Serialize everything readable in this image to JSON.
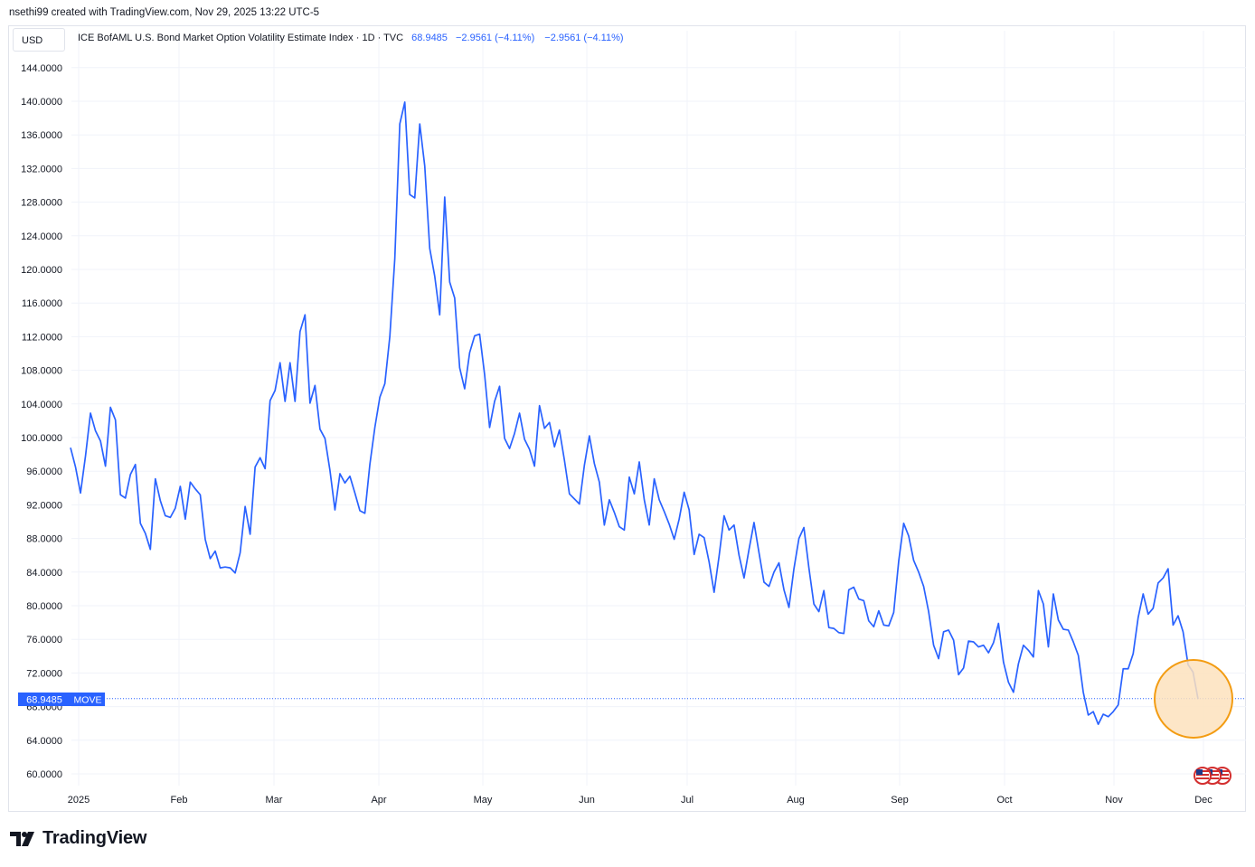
{
  "header": {
    "author_line": "nsethi99 created with TradingView.com, Nov 29, 2025 13:22 UTC-5"
  },
  "toolbar": {
    "currency_label": "USD"
  },
  "legend": {
    "symbol_desc": "ICE BofAML U.S. Bond Market Option Volatility Estimate Index · 1D · TVC",
    "last_value": "68.9485",
    "change": "−2.9561 (−4.11%)",
    "change_repeat": "−2.9561 (−4.11%)"
  },
  "price_label": {
    "value": "68.9485",
    "ticker": "MOVE"
  },
  "footer": {
    "brand": "TradingView"
  },
  "colors": {
    "series": "#2962ff",
    "highlight_fill": "#fde2bd",
    "highlight_stroke": "#f39c12",
    "grid": "#f0f3fa"
  },
  "chart_data": {
    "type": "line",
    "title": "ICE BofAML U.S. Bond Market Option Volatility Estimate Index",
    "ylim": [
      60,
      145
    ],
    "y_ticks": [
      "144.0000",
      "140.0000",
      "136.0000",
      "132.0000",
      "128.0000",
      "124.0000",
      "120.0000",
      "116.0000",
      "112.0000",
      "108.0000",
      "104.0000",
      "100.0000",
      "96.0000",
      "92.0000",
      "88.0000",
      "84.0000",
      "80.0000",
      "76.0000",
      "72.0000",
      "68.0000",
      "64.0000",
      "60.0000"
    ],
    "x_tick_labels": [
      "2025",
      "Feb",
      "Mar",
      "Apr",
      "May",
      "Jun",
      "Jul",
      "Aug",
      "Sep",
      "Oct",
      "Nov",
      "Dec"
    ],
    "grid": true,
    "last_value": 68.9485,
    "series": [
      {
        "values": [
          98.8,
          96.5,
          93.4,
          97.8,
          102.9,
          100.8,
          99.6,
          96.6,
          103.6,
          102.1,
          93.2,
          92.8,
          95.6,
          96.8,
          89.8,
          88.6,
          86.7,
          95.1,
          92.5,
          90.7,
          90.5,
          91.6,
          94.2,
          90.3,
          94.7,
          93.9,
          93.2,
          87.9,
          85.6,
          86.5,
          84.5,
          84.6,
          84.5,
          83.9,
          86.3,
          91.8,
          88.5,
          96.5,
          97.6,
          96.3,
          104.4,
          105.6,
          108.9,
          104.3,
          108.9,
          104.3,
          112.6,
          114.6,
          104.1,
          106.2,
          101.0,
          99.9,
          96.1,
          91.4,
          95.7,
          94.6,
          95.4,
          93.4,
          91.3,
          91.0,
          96.8,
          101.2,
          104.8,
          106.4,
          112.0,
          121.3,
          137.3,
          139.9,
          128.9,
          128.5,
          137.3,
          132.3,
          122.5,
          119.2,
          114.6,
          128.6,
          118.5,
          116.6,
          108.3,
          105.8,
          110.1,
          112.1,
          112.3,
          107.5,
          101.2,
          104.3,
          106.1,
          99.9,
          98.7,
          100.5,
          102.9,
          99.8,
          98.6,
          96.6,
          103.8,
          101.1,
          101.8,
          98.9,
          100.9,
          97.3,
          93.3,
          92.7,
          92.1,
          96.7,
          100.2,
          96.9,
          94.7,
          89.6,
          92.6,
          91.1,
          89.4,
          89.0,
          95.3,
          93.3,
          97.1,
          92.6,
          89.6,
          95.1,
          92.6,
          91.2,
          89.7,
          87.9,
          90.3,
          93.5,
          91.4,
          86.1,
          88.5,
          88.1,
          85.2,
          81.6,
          85.9,
          90.7,
          89.0,
          89.6,
          86.0,
          83.3,
          86.7,
          89.9,
          86.3,
          82.8,
          82.3,
          84.0,
          85.1,
          81.9,
          79.8,
          84.4,
          88.0,
          89.3,
          84.5,
          80.2,
          79.3,
          81.8,
          77.4,
          77.3,
          76.8,
          76.7,
          81.9,
          82.2,
          80.8,
          80.6,
          78.2,
          77.5,
          79.4,
          77.7,
          77.6,
          79.2,
          85.3,
          89.8,
          88.3,
          85.4,
          84.0,
          82.3,
          79.3,
          75.3,
          73.7,
          76.9,
          77.1,
          75.9,
          71.8,
          72.6,
          75.8,
          75.7,
          75.1,
          75.3,
          74.4,
          75.6,
          77.9,
          73.3,
          70.9,
          69.7,
          73.1,
          75.3,
          74.7,
          73.9,
          81.8,
          80.2,
          75.1,
          81.4,
          78.3,
          77.2,
          77.1,
          75.7,
          74.1,
          69.7,
          67.0,
          67.4,
          65.9,
          67.1,
          66.8,
          67.4,
          68.2,
          72.5,
          72.5,
          74.3,
          78.6,
          81.4,
          79.0,
          79.7,
          82.7,
          83.3,
          84.4,
          77.7,
          78.8,
          76.9,
          73.0,
          72.1,
          68.9
        ]
      }
    ]
  }
}
